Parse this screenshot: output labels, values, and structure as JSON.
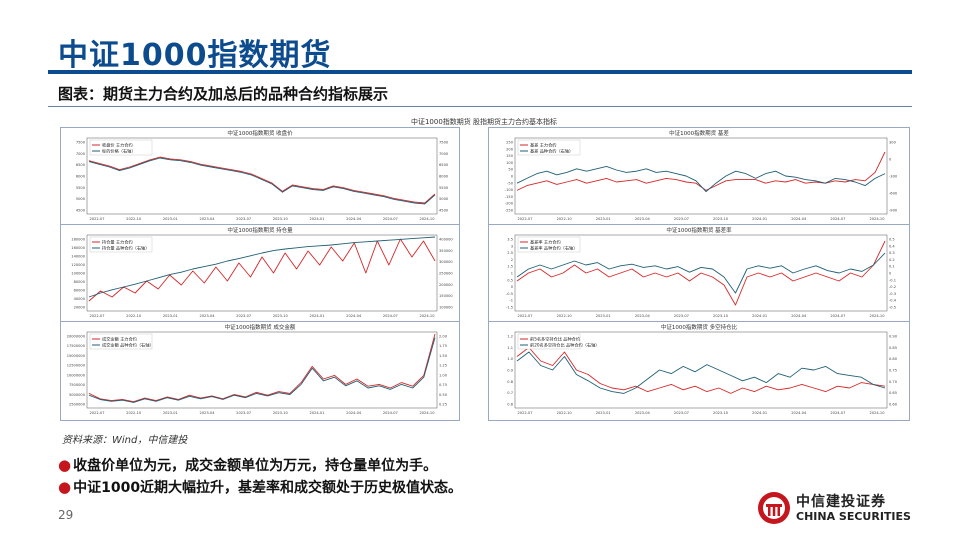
{
  "slide": {
    "title": "中证1000指数期货",
    "subtitle": "图表：期货主力合约及加总后的品种合约指标展示",
    "figure_title": "中证1000指数期货 股指期货主力合约基本指标",
    "source": "资料来源：Wind，中信建投",
    "bullets": [
      "收盘价单位为元，成交金额单位为万元，持仓量单位为手。",
      "中证1000近期大幅拉升，基差率和成交额处于历史极值状态。"
    ],
    "page_number": "29",
    "logo": {
      "name_cn": "中信建投证券",
      "name_en": "CHINA SECURITIES",
      "icon": "citic-logo-icon",
      "color": "#c4161c"
    }
  },
  "colors": {
    "series_red": "#d62728",
    "series_teal": "#1f5f74",
    "title_blue": "#0d4b8f"
  },
  "x_ticks": [
    "2022-07",
    "2022-10",
    "2023-01",
    "2023-04",
    "2023-07",
    "2023-10",
    "2024-01",
    "2024-04",
    "2024-07",
    "2024-10"
  ],
  "chart_data": [
    {
      "id": "close",
      "type": "line",
      "title": "中证1000指数期货 收盘价",
      "legend": [
        "收盘价 主力合约",
        "标的价格（右轴）"
      ],
      "legend_position": "top-left",
      "ylim": [
        4000,
        8000
      ],
      "y_ticks": [
        "7500",
        "7000",
        "6500",
        "6000",
        "5500",
        "5000",
        "4500"
      ],
      "y2_ticks": [
        "7500",
        "7000",
        "6500",
        "6000",
        "5500",
        "5000",
        "4500"
      ],
      "series": [
        {
          "name": "收盘价 主力合约",
          "color": "red",
          "values": [
            6850,
            6700,
            6550,
            6350,
            6500,
            6700,
            6900,
            7050,
            6950,
            6900,
            6800,
            6650,
            6550,
            6450,
            6350,
            6250,
            6100,
            5850,
            5600,
            5150,
            5500,
            5400,
            5300,
            5250,
            5450,
            5350,
            5200,
            5100,
            5000,
            4900,
            4750,
            4650,
            4550,
            4500,
            5000
          ]
        },
        {
          "name": "标的价格（右轴）",
          "color": "teal",
          "values": [
            6800,
            6650,
            6500,
            6300,
            6450,
            6650,
            6850,
            7000,
            6900,
            6850,
            6750,
            6600,
            6500,
            6400,
            6300,
            6200,
            6050,
            5800,
            5550,
            5100,
            5450,
            5350,
            5250,
            5200,
            5400,
            5300,
            5150,
            5050,
            4950,
            4850,
            4700,
            4600,
            4500,
            4450,
            4950
          ]
        }
      ]
    },
    {
      "id": "basis",
      "type": "line",
      "title": "中证1000指数期货 基差",
      "legend": [
        "基差 主力合约",
        "基差 品种合约（右轴）"
      ],
      "legend_position": "top-left",
      "ylim": [
        -300,
        300
      ],
      "y_ticks": [
        "250",
        "200",
        "150",
        "100",
        "50",
        "0",
        "-50",
        "-100",
        "-150",
        "-200",
        "-250"
      ],
      "y2_ticks": [
        "300",
        "0",
        "-300",
        "-600",
        "-900"
      ],
      "series": [
        {
          "name": "基差 主力合约",
          "color": "red",
          "values": [
            -120,
            -80,
            -60,
            -40,
            -70,
            -50,
            -30,
            -60,
            -40,
            -20,
            -50,
            -40,
            -30,
            -60,
            -40,
            -20,
            -30,
            -50,
            -60,
            -120,
            -80,
            -40,
            -30,
            -30,
            -30,
            -60,
            -40,
            -50,
            -30,
            -60,
            -50,
            -60,
            -40,
            -50,
            -30,
            -40,
            30,
            200
          ]
        },
        {
          "name": "基差 品种合约（右轴）",
          "color": "teal",
          "values": [
            -60,
            -20,
            20,
            40,
            10,
            30,
            60,
            40,
            60,
            80,
            50,
            30,
            40,
            60,
            30,
            40,
            20,
            0,
            -40,
            -130,
            -60,
            0,
            40,
            20,
            -20,
            20,
            40,
            0,
            -10,
            -30,
            -40,
            -60,
            -20,
            -30,
            -50,
            -80,
            -20,
            20
          ]
        }
      ]
    },
    {
      "id": "open_interest",
      "type": "line",
      "title": "中证1000指数期货 持仓量",
      "legend": [
        "持仓量 主力合约",
        "持仓量 品种合约（右轴）"
      ],
      "legend_position": "top-left",
      "ylim": [
        0,
        180000
      ],
      "y_ticks": [
        "180000",
        "160000",
        "140000",
        "120000",
        "100000",
        "80000",
        "60000",
        "40000",
        "20000"
      ],
      "y2_ticks": [
        "400000",
        "350000",
        "300000",
        "250000",
        "200000",
        "150000",
        "100000"
      ],
      "series": [
        {
          "name": "持仓量 主力合约",
          "color": "red",
          "values": [
            20000,
            45000,
            30000,
            55000,
            40000,
            70000,
            50000,
            85000,
            60000,
            95000,
            65000,
            105000,
            70000,
            115000,
            80000,
            130000,
            90000,
            140000,
            100000,
            145000,
            110000,
            155000,
            120000,
            165000,
            90000,
            170000,
            110000,
            175000,
            130000,
            170000,
            120000
          ]
        },
        {
          "name": "持仓量 品种合约（右轴）",
          "color": "teal",
          "values": [
            30000,
            40000,
            48000,
            55000,
            62000,
            70000,
            78000,
            86000,
            92000,
            100000,
            106000,
            112000,
            120000,
            126000,
            133000,
            140000,
            146000,
            150000,
            153000,
            156000,
            158000,
            160000,
            163000,
            166000,
            168000,
            170000,
            172000,
            174000,
            176000,
            178000,
            180000
          ]
        }
      ]
    },
    {
      "id": "basis_rate",
      "type": "line",
      "title": "中证1000指数期货 基差率",
      "legend": [
        "基差率 主力合约",
        "基差率 品种合约（右轴）"
      ],
      "legend_position": "top-left",
      "ylim": [
        -5,
        4
      ],
      "y_ticks": [
        "3.5",
        "3",
        "2.5",
        "2",
        "1.5",
        "1",
        "0.5",
        "0",
        "-0.5",
        "-1",
        "-1.5"
      ],
      "y2_ticks": [
        "0.5",
        "0.4",
        "0.3",
        "0.2",
        "0.1",
        "0",
        "-0.1",
        "-0.2",
        "-0.3",
        "-0.4",
        "-0.5"
      ],
      "series": [
        {
          "name": "基差率 主力合约",
          "color": "red",
          "values": [
            -1.5,
            -0.5,
            0,
            -1,
            -0.5,
            0.5,
            -0.5,
            0,
            -1,
            -0.5,
            0,
            -1,
            -0.5,
            -1,
            -0.5,
            -1.5,
            -0.5,
            -1,
            -2,
            -4.5,
            -1,
            -0.5,
            -1,
            -0.5,
            -1.5,
            -1,
            -0.5,
            -1,
            -1.5,
            -0.5,
            -1,
            0.5,
            3.5
          ]
        },
        {
          "name": "基差率 品种合约（右轴）",
          "color": "teal",
          "values": [
            -1,
            0,
            0.5,
            0,
            0.5,
            1,
            0.5,
            0.8,
            0,
            0.4,
            0.6,
            0.2,
            0.4,
            0,
            0.3,
            -0.4,
            0.2,
            0,
            -1,
            -3,
            0,
            0.4,
            0.1,
            0.4,
            -0.5,
            0,
            0.4,
            -0.2,
            -0.5,
            0,
            -0.3,
            0.5,
            2
          ]
        }
      ]
    },
    {
      "id": "turnover",
      "type": "line",
      "title": "中证1000指数期货 成交金额",
      "legend": [
        "成交金额 主力合约",
        "成交金额 品种合约（右轴）"
      ],
      "legend_position": "top-left",
      "ylim": [
        0,
        20000000
      ],
      "y_ticks": [
        "20000000",
        "17500000",
        "15000000",
        "12500000",
        "10000000",
        "7500000",
        "5000000",
        "2500000"
      ],
      "y2_ticks": [
        "2.00",
        "1.75",
        "1.50",
        "1.25",
        "1.00",
        "0.75",
        "0.50",
        "0.25"
      ],
      "series": [
        {
          "name": "成交金额 主力合约",
          "color": "red",
          "values": [
            3500000,
            2000000,
            1500000,
            1800000,
            1200000,
            2200000,
            1500000,
            2500000,
            1800000,
            3000000,
            2200000,
            2800000,
            2000000,
            3200000,
            2500000,
            3800000,
            3000000,
            4000000,
            3500000,
            6500000,
            11000000,
            7500000,
            8500000,
            6000000,
            7500000,
            5500000,
            6000000,
            5000000,
            6500000,
            5500000,
            8500000,
            20000000
          ]
        },
        {
          "name": "成交金额 品种合约（右轴）",
          "color": "teal",
          "values": [
            3000000,
            1800000,
            1300000,
            1600000,
            1000000,
            2000000,
            1300000,
            2300000,
            1600000,
            2700000,
            2000000,
            2600000,
            1800000,
            3000000,
            2300000,
            3500000,
            2800000,
            3700000,
            3200000,
            6000000,
            10500000,
            7000000,
            8000000,
            5600000,
            7000000,
            5000000,
            5600000,
            4600000,
            6000000,
            5000000,
            8000000,
            19000000
          ]
        }
      ]
    },
    {
      "id": "long_short_ratio",
      "type": "line",
      "title": "中证1000指数期货 多空持仓比",
      "legend": [
        "前5名多空持仓比 品种合约",
        "前20名多空持仓比 品种合约（右轴）"
      ],
      "legend_position": "top-left",
      "ylim": [
        0.5,
        1.3
      ],
      "y_ticks": [
        "1.2",
        "1.1",
        "1.0",
        "0.9",
        "0.8",
        "0.7",
        "0.6"
      ],
      "y2_ticks": [
        "0.90",
        "0.85",
        "0.80",
        "0.75",
        "0.70",
        "0.65",
        "0.60"
      ],
      "series": [
        {
          "name": "前5名多空持仓比 品种合约",
          "color": "red",
          "values": [
            1.05,
            1.15,
            1.0,
            0.95,
            1.1,
            0.9,
            0.85,
            0.75,
            0.7,
            0.68,
            0.72,
            0.66,
            0.7,
            0.74,
            0.68,
            0.72,
            0.66,
            0.7,
            0.64,
            0.7,
            0.66,
            0.72,
            0.68,
            0.7,
            0.74,
            0.7,
            0.66,
            0.72,
            0.7,
            0.76,
            0.74,
            0.72
          ]
        },
        {
          "name": "前20名多空持仓比 品种合约（右轴）",
          "color": "teal",
          "values": [
            1.0,
            1.1,
            0.95,
            0.9,
            1.05,
            0.85,
            0.78,
            0.7,
            0.66,
            0.64,
            0.7,
            0.8,
            0.9,
            0.86,
            0.94,
            0.88,
            0.96,
            0.9,
            0.84,
            0.78,
            0.82,
            0.76,
            0.86,
            0.82,
            0.92,
            0.9,
            0.94,
            0.86,
            0.84,
            0.82,
            0.74,
            0.7
          ]
        }
      ]
    }
  ]
}
